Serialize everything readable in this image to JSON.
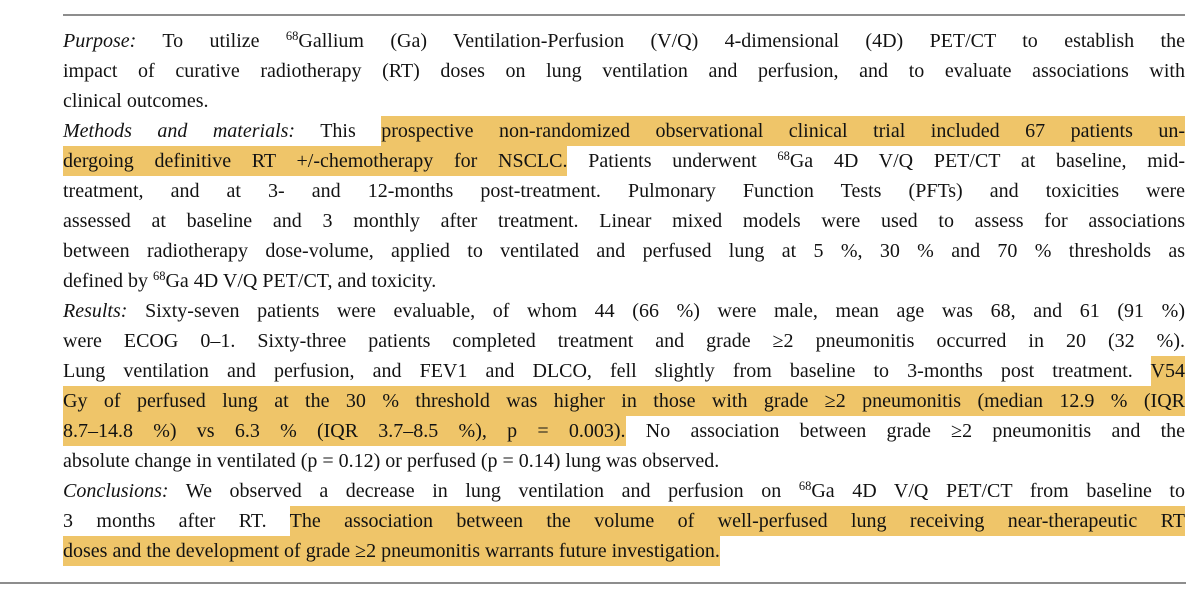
{
  "page": {
    "background": "#ffffff",
    "text_color": "#121212",
    "highlight_color": "#efc569",
    "rule_color": "#8d8d8d"
  },
  "abstract": {
    "paragraphs": [
      {
        "name": "purpose",
        "lines": [
          {
            "justify": true,
            "segments": [
              {
                "t": "Purpose:",
                "style": "italic"
              },
              {
                "t": " To utilize "
              },
              {
                "t": "68",
                "style": "sup"
              },
              {
                "t": "Gallium (Ga) Ventilation-Perfusion (V/Q) 4-dimensional (4D) PET/CT to establish the"
              }
            ]
          },
          {
            "justify": true,
            "segments": [
              {
                "t": "impact of curative radiotherapy (RT) doses on lung ventilation and perfusion, and to evaluate associations with"
              }
            ]
          },
          {
            "justify": false,
            "segments": [
              {
                "t": "clinical outcomes."
              }
            ]
          }
        ]
      },
      {
        "name": "methods-and-materials",
        "lines": [
          {
            "justify": true,
            "segments": [
              {
                "t": "Methods and materials:",
                "style": "italic"
              },
              {
                "t": " This "
              },
              {
                "t": "prospective non-randomized observational clinical trial included 67 patients un-",
                "hl": true
              }
            ]
          },
          {
            "justify": true,
            "segments": [
              {
                "t": "dergoing definitive RT +/-chemotherapy for NSCLC.",
                "hl": true
              },
              {
                "t": " Patients underwent "
              },
              {
                "t": "68",
                "style": "sup"
              },
              {
                "t": "Ga 4D V/Q PET/CT at baseline, mid-"
              }
            ]
          },
          {
            "justify": true,
            "segments": [
              {
                "t": "treatment, and at 3- and 12-months post-treatment. Pulmonary Function Tests (PFTs) and toxicities were"
              }
            ]
          },
          {
            "justify": true,
            "segments": [
              {
                "t": "assessed at baseline and 3 monthly after treatment. Linear mixed models were used to assess for associations"
              }
            ]
          },
          {
            "justify": true,
            "segments": [
              {
                "t": "between radiotherapy dose-volume, applied to ventilated and perfused lung at 5 %, 30 % and 70 % thresholds as"
              }
            ]
          },
          {
            "justify": false,
            "segments": [
              {
                "t": "defined by "
              },
              {
                "t": "68",
                "style": "sup"
              },
              {
                "t": "Ga 4D V/Q PET/CT, and toxicity."
              }
            ]
          }
        ]
      },
      {
        "name": "results",
        "lines": [
          {
            "justify": true,
            "segments": [
              {
                "t": "Results:",
                "style": "italic"
              },
              {
                "t": " Sixty-seven patients were evaluable, of whom 44 (66 %) were male, mean age was 68, and 61 (91 %)"
              }
            ]
          },
          {
            "justify": true,
            "segments": [
              {
                "t": "were ECOG 0–1. Sixty-three patients completed treatment and grade ≥2 pneumonitis occurred in 20 (32 %)."
              }
            ]
          },
          {
            "justify": true,
            "segments": [
              {
                "t": "Lung ventilation and perfusion, and FEV1 and DLCO, fell slightly from baseline to 3-months post treatment. "
              },
              {
                "t": "V54",
                "hl": true
              }
            ]
          },
          {
            "justify": true,
            "segments": [
              {
                "t": "Gy of perfused lung at the 30 % threshold was higher in those with grade ≥2 pneumonitis (median 12.9 % (IQR",
                "hl": true
              }
            ]
          },
          {
            "justify": true,
            "segments": [
              {
                "t": "8.7–14.8 %) vs 6.3 % (IQR 3.7–8.5 %), p = 0.003).",
                "hl": true
              },
              {
                "t": " No association between grade ≥2 pneumonitis and the"
              }
            ]
          },
          {
            "justify": false,
            "segments": [
              {
                "t": "absolute change in ventilated (p = 0.12) or perfused (p = 0.14) lung was observed."
              }
            ]
          }
        ]
      },
      {
        "name": "conclusions",
        "lines": [
          {
            "justify": true,
            "segments": [
              {
                "t": "Conclusions:",
                "style": "italic"
              },
              {
                "t": " We observed a decrease in lung ventilation and perfusion on "
              },
              {
                "t": "68",
                "style": "sup"
              },
              {
                "t": "Ga 4D V/Q PET/CT from baseline to"
              }
            ]
          },
          {
            "justify": true,
            "segments": [
              {
                "t": "3 months after RT. "
              },
              {
                "t": "The association between the volume of well-perfused lung receiving near-therapeutic RT",
                "hl": true
              }
            ]
          },
          {
            "justify": false,
            "segments": [
              {
                "t": "doses and the development of grade ≥2 pneumonitis warrants future investigation.",
                "hl": true
              }
            ]
          }
        ]
      }
    ]
  }
}
